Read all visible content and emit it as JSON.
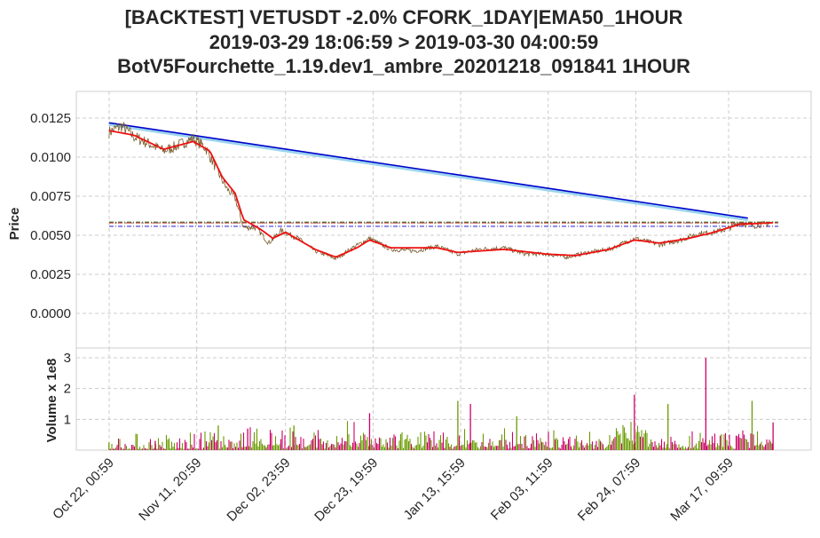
{
  "title": {
    "line1": "[BACKTEST] VETUSDT -2.0% CFORK_1DAY|EMA50_1HOUR",
    "line2": "2019-03-29 18:06:59 > 2019-03-30 04:00:59",
    "line3": "BotV5Fourchette_1.19.dev1_ambre_20201218_091841 1HOUR"
  },
  "colors": {
    "price": "#7a5a2a",
    "ema": "#ee1111",
    "trend": "#0000cc",
    "trend_shadow": "#9ad4ee",
    "vol_up": "#6a9a00",
    "vol_down": "#cc0066",
    "grid": "#cccccc",
    "hline_green": "#228b22",
    "hline_red": "#cc0000",
    "hline_blue": "#0000cc"
  },
  "chart_data": [
    {
      "type": "line",
      "name": "price-panel",
      "ylabel": "Price",
      "ylim": [
        -0.0014,
        0.014
      ],
      "yticks": [
        "0.0000",
        "0.0025",
        "0.0050",
        "0.0075",
        "0.0100",
        "0.0125"
      ],
      "yticks_values": [
        0.0,
        0.0025,
        0.005,
        0.0075,
        0.01,
        0.0125
      ],
      "x_start": "Oct 22, 00:59",
      "x_end": "Mar 28, 18:59",
      "price_series": [
        {
          "x": "Oct 22",
          "y": 0.0116
        },
        {
          "x": "Oct 25",
          "y": 0.012
        },
        {
          "x": "Oct 28",
          "y": 0.0113
        },
        {
          "x": "Nov 01",
          "y": 0.0108
        },
        {
          "x": "Nov 04",
          "y": 0.0104
        },
        {
          "x": "Nov 07",
          "y": 0.0107
        },
        {
          "x": "Nov 11",
          "y": 0.0112
        },
        {
          "x": "Nov 14",
          "y": 0.0106
        },
        {
          "x": "Nov 17",
          "y": 0.009
        },
        {
          "x": "Nov 19",
          "y": 0.008
        },
        {
          "x": "Nov 21",
          "y": 0.0074
        },
        {
          "x": "Nov 23",
          "y": 0.0055
        },
        {
          "x": "Nov 26",
          "y": 0.0055
        },
        {
          "x": "Nov 29",
          "y": 0.0045
        },
        {
          "x": "Dec 02",
          "y": 0.0053
        },
        {
          "x": "Dec 06",
          "y": 0.0048
        },
        {
          "x": "Dec 10",
          "y": 0.004
        },
        {
          "x": "Dec 15",
          "y": 0.0035
        },
        {
          "x": "Dec 19",
          "y": 0.0042
        },
        {
          "x": "Dec 23",
          "y": 0.0048
        },
        {
          "x": "Dec 28",
          "y": 0.0041
        },
        {
          "x": "Jan 03",
          "y": 0.004
        },
        {
          "x": "Jan 08",
          "y": 0.0043
        },
        {
          "x": "Jan 13",
          "y": 0.0038
        },
        {
          "x": "Jan 18",
          "y": 0.0041
        },
        {
          "x": "Jan 24",
          "y": 0.0042
        },
        {
          "x": "Jan 29",
          "y": 0.0038
        },
        {
          "x": "Feb 03",
          "y": 0.0038
        },
        {
          "x": "Feb 08",
          "y": 0.0036
        },
        {
          "x": "Feb 13",
          "y": 0.0039
        },
        {
          "x": "Feb 18",
          "y": 0.0041
        },
        {
          "x": "Feb 24",
          "y": 0.0048
        },
        {
          "x": "Mar 01",
          "y": 0.0044
        },
        {
          "x": "Mar 06",
          "y": 0.0047
        },
        {
          "x": "Mar 10",
          "y": 0.0051
        },
        {
          "x": "Mar 14",
          "y": 0.0052
        },
        {
          "x": "Mar 17",
          "y": 0.0054
        },
        {
          "x": "Mar 20",
          "y": 0.0058
        },
        {
          "x": "Mar 23",
          "y": 0.0056
        },
        {
          "x": "Mar 28",
          "y": 0.0058
        }
      ],
      "ema_series": [
        {
          "x": "Oct 22",
          "y": 0.0117
        },
        {
          "x": "Oct 28",
          "y": 0.0114
        },
        {
          "x": "Nov 04",
          "y": 0.0105
        },
        {
          "x": "Nov 11",
          "y": 0.011
        },
        {
          "x": "Nov 15",
          "y": 0.0104
        },
        {
          "x": "Nov 18",
          "y": 0.0087
        },
        {
          "x": "Nov 21",
          "y": 0.0077
        },
        {
          "x": "Nov 23",
          "y": 0.006
        },
        {
          "x": "Nov 27",
          "y": 0.0054
        },
        {
          "x": "Nov 30",
          "y": 0.0048
        },
        {
          "x": "Dec 03",
          "y": 0.0052
        },
        {
          "x": "Dec 10",
          "y": 0.0041
        },
        {
          "x": "Dec 15",
          "y": 0.0036
        },
        {
          "x": "Dec 20",
          "y": 0.0042
        },
        {
          "x": "Dec 23",
          "y": 0.0047
        },
        {
          "x": "Dec 28",
          "y": 0.0042
        },
        {
          "x": "Jan 08",
          "y": 0.0042
        },
        {
          "x": "Jan 13",
          "y": 0.0039
        },
        {
          "x": "Jan 24",
          "y": 0.0041
        },
        {
          "x": "Feb 03",
          "y": 0.0038
        },
        {
          "x": "Feb 10",
          "y": 0.0037
        },
        {
          "x": "Feb 18",
          "y": 0.0041
        },
        {
          "x": "Feb 24",
          "y": 0.0047
        },
        {
          "x": "Mar 01",
          "y": 0.0045
        },
        {
          "x": "Mar 08",
          "y": 0.0048
        },
        {
          "x": "Mar 14",
          "y": 0.0052
        },
        {
          "x": "Mar 20",
          "y": 0.0057
        },
        {
          "x": "Mar 28",
          "y": 0.0058
        }
      ],
      "trend_line": [
        {
          "x": "Oct 22",
          "y": 0.0122
        },
        {
          "x": "Mar 22",
          "y": 0.0061
        }
      ],
      "hlines": [
        0.00585,
        0.00579,
        0.00557
      ]
    },
    {
      "type": "bar",
      "name": "volume-panel",
      "ylabel": "Volume x 1e8",
      "ylim": [
        0,
        3.4
      ],
      "yticks": [
        "1",
        "2",
        "3"
      ],
      "yticks_values": [
        1,
        2,
        3
      ],
      "spikes": [
        {
          "x": "Oct 22",
          "v": 0.25
        },
        {
          "x": "Nov 02",
          "v": 0.3
        },
        {
          "x": "Nov 17",
          "v": 0.8
        },
        {
          "x": "Nov 24",
          "v": 0.7
        },
        {
          "x": "Dec 05",
          "v": 0.8
        },
        {
          "x": "Dec 23",
          "v": 1.2
        },
        {
          "x": "Jan 13",
          "v": 1.6
        },
        {
          "x": "Jan 16",
          "v": 1.5
        },
        {
          "x": "Jan 27",
          "v": 1.1
        },
        {
          "x": "Feb 24",
          "v": 1.8
        },
        {
          "x": "Mar 03",
          "v": 1.5
        },
        {
          "x": "Mar 12",
          "v": 3.0
        },
        {
          "x": "Mar 23",
          "v": 1.6
        },
        {
          "x": "Mar 28",
          "v": 0.9
        }
      ]
    }
  ],
  "x_ticks": [
    "Oct 22, 00:59",
    "Nov 11, 20:59",
    "Dec 02, 23:59",
    "Dec 23, 19:59",
    "Jan 13, 15:59",
    "Feb 03, 11:59",
    "Feb 24, 07:59",
    "Mar 17, 09:59"
  ]
}
